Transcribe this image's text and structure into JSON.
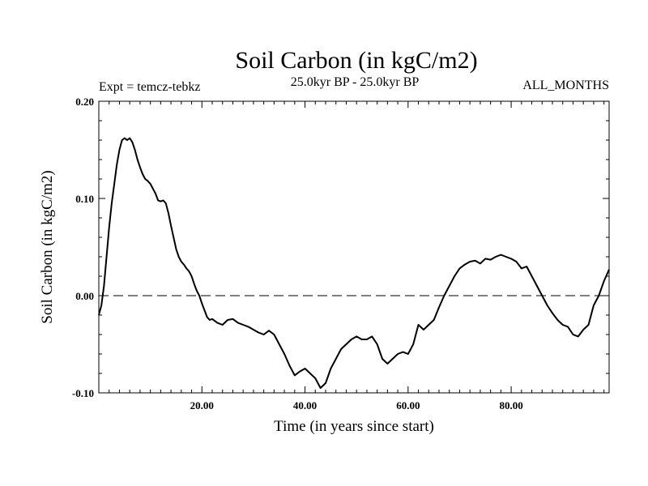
{
  "chart_data": {
    "type": "line",
    "title": "Soil Carbon (in kgC/m2)",
    "subtitle": "25.0kyr BP - 25.0kyr BP",
    "left_label": "Expt = temcz-tebkz",
    "right_label": "ALL_MONTHS",
    "xlabel": "Time (in years since start)",
    "ylabel": "Soil Carbon (in kgC/m2)",
    "xlim": [
      0,
      99
    ],
    "ylim": [
      -0.1,
      0.2
    ],
    "x_ticks": [
      20,
      40,
      60,
      80
    ],
    "x_tick_labels": [
      "20.00",
      "40.00",
      "60.00",
      "80.00"
    ],
    "y_ticks": [
      -0.1,
      0.0,
      0.1,
      0.2
    ],
    "y_tick_labels": [
      "-0.10",
      "0.00",
      "0.10",
      "0.20"
    ],
    "zero_line": {
      "y": 0.0,
      "style": "dashed"
    },
    "grid": false,
    "series": [
      {
        "color": "#000000",
        "x": [
          0,
          0.5,
          1,
          1.5,
          2,
          2.5,
          3,
          3.5,
          4,
          4.5,
          5,
          5.5,
          6,
          6.5,
          7,
          7.5,
          8,
          8.5,
          9,
          9.5,
          10,
          10.5,
          11,
          11.5,
          12,
          12.5,
          13,
          13.5,
          14,
          14.5,
          15,
          15.5,
          16,
          16.5,
          17,
          17.5,
          18,
          18.5,
          19,
          19.5,
          20,
          20.5,
          21,
          21.5,
          22,
          23,
          24,
          25,
          26,
          27,
          28,
          29,
          30,
          31,
          32,
          33,
          34,
          35,
          36,
          37,
          38,
          39,
          40,
          41,
          42,
          43,
          44,
          45,
          46,
          47,
          48,
          49,
          50,
          51,
          52,
          53,
          54,
          55,
          56,
          57,
          58,
          59,
          60,
          61,
          62,
          63,
          64,
          65,
          66,
          67,
          68,
          69,
          70,
          71,
          72,
          73,
          74,
          75,
          76,
          77,
          78,
          79,
          80,
          81,
          82,
          83,
          84,
          85,
          86,
          87,
          88,
          89,
          90,
          91,
          92,
          93,
          94,
          95,
          96,
          97,
          98,
          99
        ],
        "y": [
          -0.02,
          -0.01,
          0.01,
          0.04,
          0.07,
          0.095,
          0.115,
          0.135,
          0.15,
          0.16,
          0.162,
          0.16,
          0.162,
          0.158,
          0.15,
          0.14,
          0.132,
          0.125,
          0.12,
          0.118,
          0.115,
          0.11,
          0.105,
          0.098,
          0.097,
          0.098,
          0.095,
          0.085,
          0.072,
          0.06,
          0.048,
          0.04,
          0.035,
          0.032,
          0.028,
          0.025,
          0.02,
          0.012,
          0.005,
          0.0,
          -0.008,
          -0.015,
          -0.022,
          -0.025,
          -0.024,
          -0.028,
          -0.03,
          -0.025,
          -0.024,
          -0.028,
          -0.03,
          -0.032,
          -0.035,
          -0.038,
          -0.04,
          -0.036,
          -0.04,
          -0.05,
          -0.06,
          -0.072,
          -0.082,
          -0.078,
          -0.075,
          -0.08,
          -0.085,
          -0.095,
          -0.09,
          -0.075,
          -0.065,
          -0.055,
          -0.05,
          -0.045,
          -0.042,
          -0.045,
          -0.045,
          -0.042,
          -0.05,
          -0.065,
          -0.07,
          -0.065,
          -0.06,
          -0.058,
          -0.06,
          -0.05,
          -0.03,
          -0.035,
          -0.03,
          -0.025,
          -0.012,
          0.0,
          0.01,
          0.02,
          0.028,
          0.032,
          0.035,
          0.036,
          0.033,
          0.038,
          0.037,
          0.04,
          0.042,
          0.04,
          0.038,
          0.035,
          0.028,
          0.03,
          0.02,
          0.01,
          0.0,
          -0.01,
          -0.018,
          -0.025,
          -0.03,
          -0.032,
          -0.04,
          -0.042,
          -0.035,
          -0.03,
          -0.01,
          0.0,
          0.015,
          0.027
        ]
      }
    ]
  }
}
